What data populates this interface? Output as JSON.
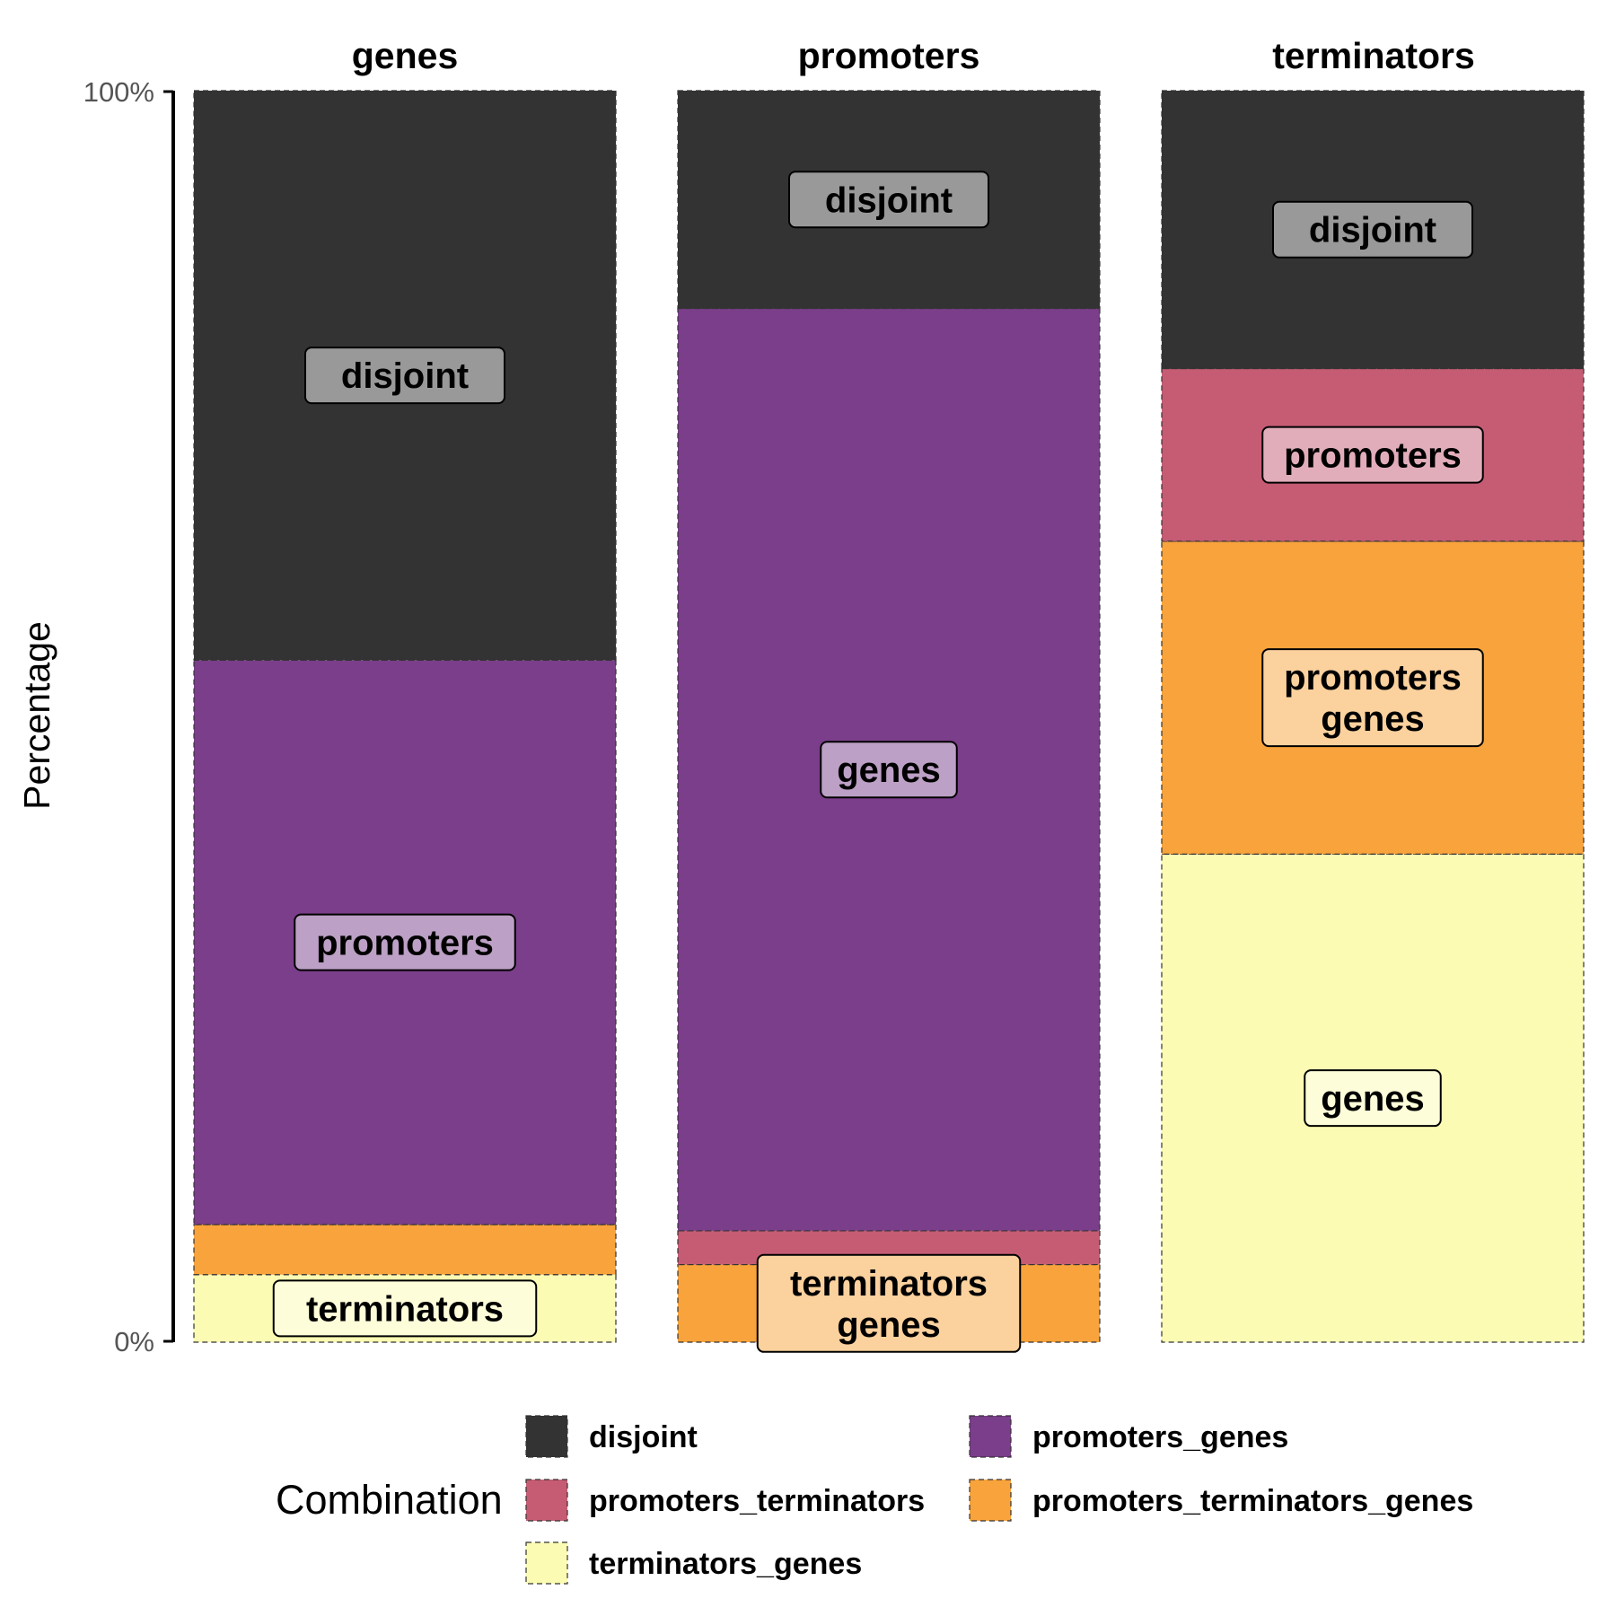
{
  "chart_data": {
    "type": "bar",
    "stacked": true,
    "facets": [
      "genes",
      "promoters",
      "terminators"
    ],
    "ylabel": "Percentage",
    "ylim": [
      0,
      100
    ],
    "y_ticks": [
      "0%",
      "100%"
    ],
    "grid": false,
    "legend": {
      "title": "Combination",
      "placement": "bottom",
      "items": [
        {
          "key": "disjoint",
          "label": "disjoint",
          "color": "#333333"
        },
        {
          "key": "promoters_genes",
          "label": "promoters_genes",
          "color": "#7a3e8a"
        },
        {
          "key": "promoters_terminators",
          "label": "promoters_terminators",
          "color": "#c55c74"
        },
        {
          "key": "promoters_terminators_genes",
          "label": "promoters_terminators_genes",
          "color": "#f8a33c"
        },
        {
          "key": "terminators_genes",
          "label": "terminators_genes",
          "color": "#fbfbb3"
        }
      ]
    },
    "label_fill": {
      "disjoint": "#999999",
      "promoters_genes": "#bca0c5",
      "promoters_terminators": "#e2adba",
      "promoters_terminators_genes": "#fbd19e",
      "terminators_genes": "#fdfdd9"
    },
    "bars": [
      {
        "facet": "genes",
        "segments": [
          {
            "key": "terminators_genes",
            "value": 5.4,
            "label": [
              "terminators"
            ]
          },
          {
            "key": "promoters_terminators_genes",
            "value": 4.0,
            "label": []
          },
          {
            "key": "promoters_genes",
            "value": 45.1,
            "label": [
              "promoters"
            ]
          },
          {
            "key": "disjoint",
            "value": 45.5,
            "label": [
              "disjoint"
            ]
          }
        ]
      },
      {
        "facet": "promoters",
        "segments": [
          {
            "key": "promoters_terminators_genes",
            "value": 6.2,
            "label": [
              "terminators",
              "genes"
            ]
          },
          {
            "key": "promoters_terminators",
            "value": 2.7,
            "label": []
          },
          {
            "key": "promoters_genes",
            "value": 73.7,
            "label": [
              "genes"
            ]
          },
          {
            "key": "disjoint",
            "value": 17.4,
            "label": [
              "disjoint"
            ]
          }
        ]
      },
      {
        "facet": "terminators",
        "segments": [
          {
            "key": "terminators_genes",
            "value": 39.0,
            "label": [
              "genes"
            ]
          },
          {
            "key": "promoters_terminators_genes",
            "value": 25.0,
            "label": [
              "promoters",
              "genes"
            ]
          },
          {
            "key": "promoters_terminators",
            "value": 13.8,
            "label": [
              "promoters"
            ]
          },
          {
            "key": "disjoint",
            "value": 22.2,
            "label": [
              "disjoint"
            ]
          }
        ]
      }
    ]
  }
}
